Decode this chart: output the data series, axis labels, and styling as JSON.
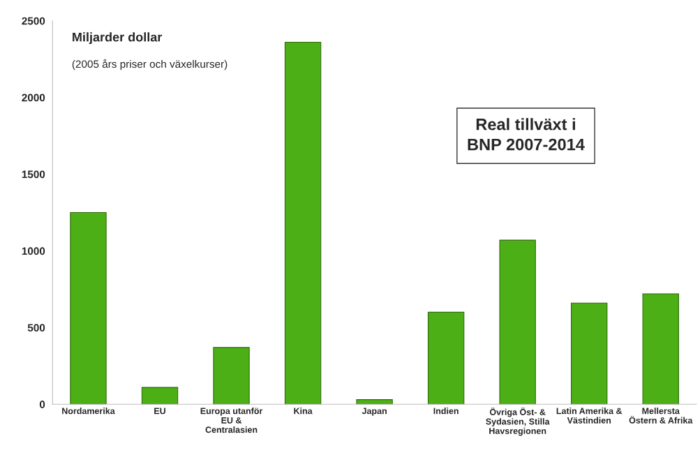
{
  "chart_data": {
    "type": "bar",
    "title": "Real tillväxt i\nBNP 2007-2014",
    "ylabel": "Miljarder dollar",
    "subtitle": "(2005 års priser och växelkurser)",
    "categories": [
      "Nordamerika",
      "EU",
      "Europa utanför\nEU &\nCentralasien",
      "Kina",
      "Japan",
      "Indien",
      "Övriga Öst- &\nSydasien, Stilla\nHavsregionen",
      "Latin Amerika &\nVästindien",
      "Mellersta\nÖstern & Afrika"
    ],
    "values": [
      1250,
      110,
      370,
      2360,
      30,
      600,
      1070,
      660,
      720
    ],
    "color": "#4caf15",
    "ylim": [
      0,
      2500
    ],
    "yticks": [
      0,
      500,
      1000,
      1500,
      2000,
      2500
    ],
    "grid": false
  }
}
